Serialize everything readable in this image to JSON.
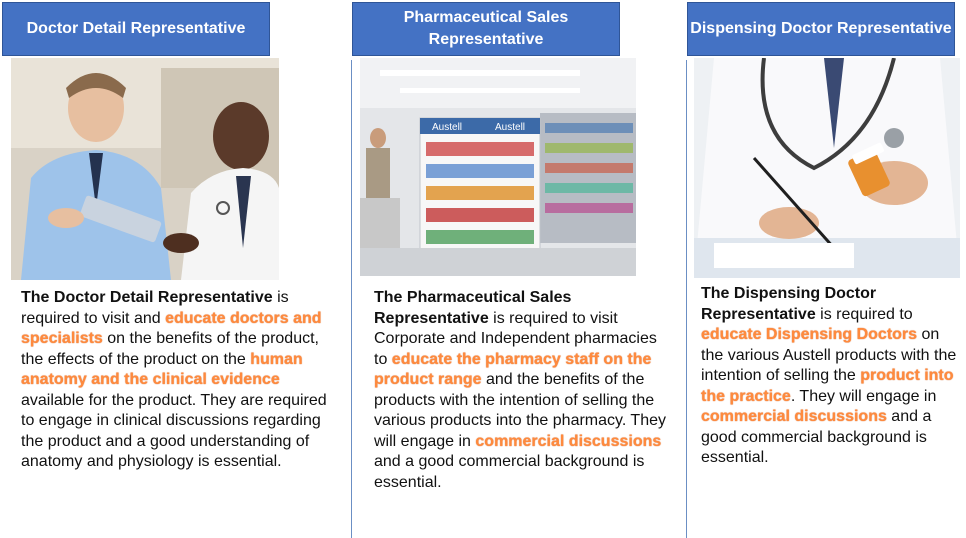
{
  "columns": [
    {
      "title": "Doctor Detail Representative",
      "image_alt": "Two doctors discussing a tablet",
      "text": {
        "lead_bold": "The Doctor Detail Representative",
        "t1": " is required to visit and ",
        "h1": "educate doctors and specialists",
        "t2": " on the benefits of the product, the effects of the product on the ",
        "h2": "human anatomy and the clinical evidence",
        "t3": " available for the product. They are required to engage in clinical discussions regarding the product and a good understanding of anatomy and physiology is essential."
      }
    },
    {
      "title": "Pharmaceutical Sales Representative",
      "image_alt": "Pharmacy aisle with Austell product display",
      "image_texts": [
        "Austell",
        "Austell"
      ],
      "text": {
        "lead_bold": "The Pharmaceutical Sales Representative",
        "t1": " is required to visit Corporate and Independent pharmacies to ",
        "h1": "educate the pharmacy staff on the product range",
        "t2": " and the benefits of the products with the intention of selling the various products into the pharmacy. They will engage in ",
        "h2": "commercial discussions",
        "t3": " and a good commercial background is essential."
      }
    },
    {
      "title": "Dispensing Doctor Representative",
      "image_alt": "Doctor writing while holding a pill bottle",
      "text": {
        "lead_bold": "The Dispensing Doctor Representative",
        "t1": " is required to ",
        "h1": "educate Dispensing Doctors",
        "t2": " on the various Austell products with the intention of selling the ",
        "h2": "product into the practice",
        "t3": ". They will engage in ",
        "h3": "commercial discussions",
        "t4": " and a good commercial background is essential."
      }
    }
  ],
  "colors": {
    "header_bg": "#4472c4",
    "highlight": "#ff8a3d",
    "divider": "#6b8fc4"
  }
}
